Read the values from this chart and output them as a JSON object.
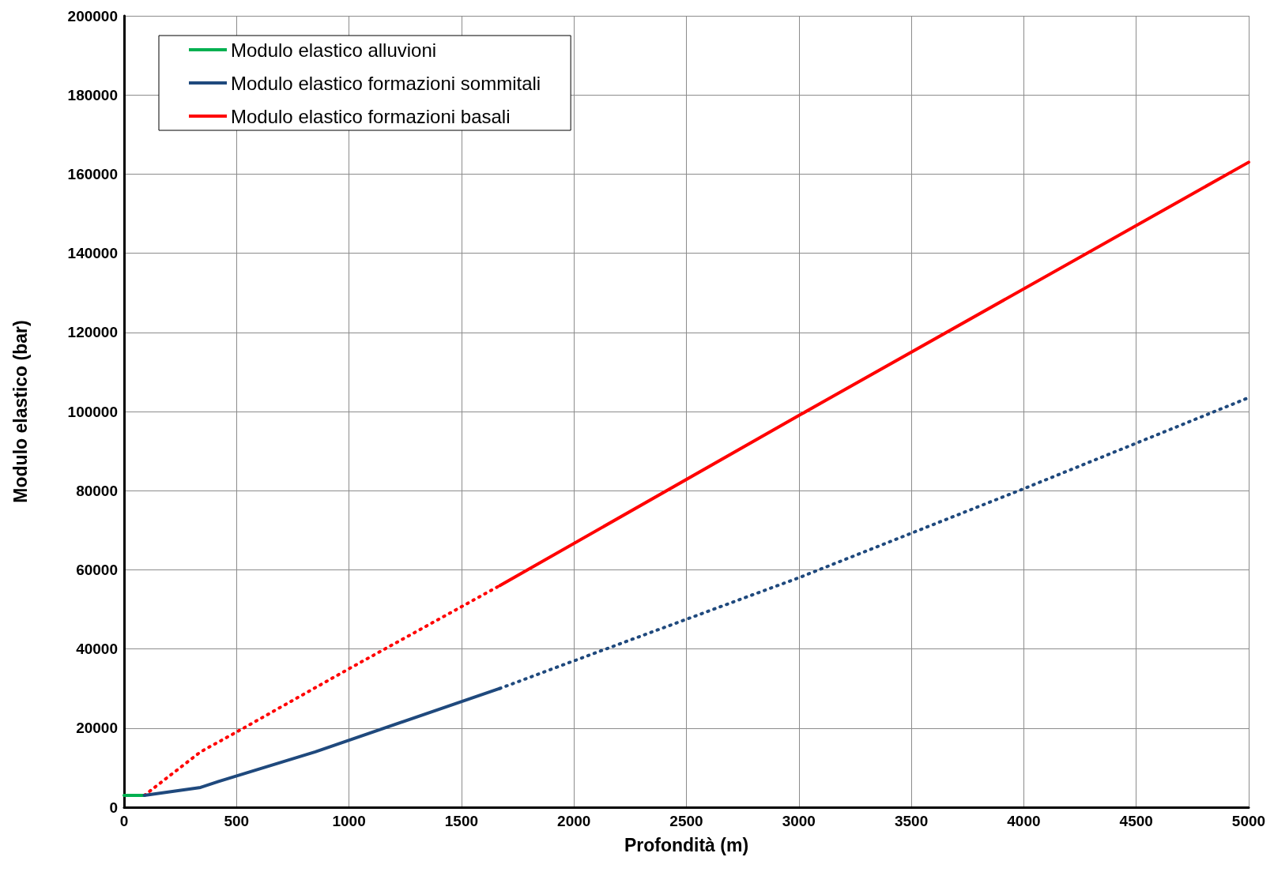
{
  "chart_data": {
    "type": "line",
    "xlabel": "Profondità (m)",
    "ylabel": "Modulo elastico (bar)",
    "xlim": [
      0,
      5000
    ],
    "xticks": [
      0,
      500,
      1000,
      1500,
      2000,
      2500,
      3000,
      3500,
      4000,
      4500,
      5000
    ],
    "ylim": [
      0,
      200000
    ],
    "yticks": [
      0,
      20000,
      40000,
      60000,
      80000,
      100000,
      120000,
      140000,
      160000,
      180000,
      200000
    ],
    "grid": true,
    "legend": "top left",
    "marker": "none",
    "series": [
      {
        "name": "Modulo elastico alluvioni",
        "color": "#00b050",
        "line_style": "solid",
        "x": [
          0,
          90
        ],
        "values": [
          3000,
          3000
        ]
      },
      {
        "name": "Modulo elastico formazioni sommitali",
        "color": "#1f497d",
        "line_style": "solid",
        "x": [
          90,
          340,
          420,
          850,
          1670
        ],
        "values": [
          3000,
          5000,
          6500,
          14000,
          30000
        ]
      },
      {
        "color": "#1f497d",
        "line_style": "dotted",
        "x": [
          1670,
          2000,
          3000,
          4000,
          5000
        ],
        "values": [
          30000,
          37000,
          58000,
          80500,
          103500
        ]
      },
      {
        "name": "Modulo elastico formazioni basali",
        "color": "#ff0000",
        "line_style": "solid",
        "x": [
          1670,
          3000,
          5000
        ],
        "values": [
          56000,
          99000,
          163000
        ]
      },
      {
        "color": "#ff0000",
        "line_style": "dotted",
        "x": [
          90,
          340,
          500,
          1000,
          1670
        ],
        "values": [
          3000,
          14000,
          19000,
          35000,
          56000
        ]
      }
    ]
  }
}
